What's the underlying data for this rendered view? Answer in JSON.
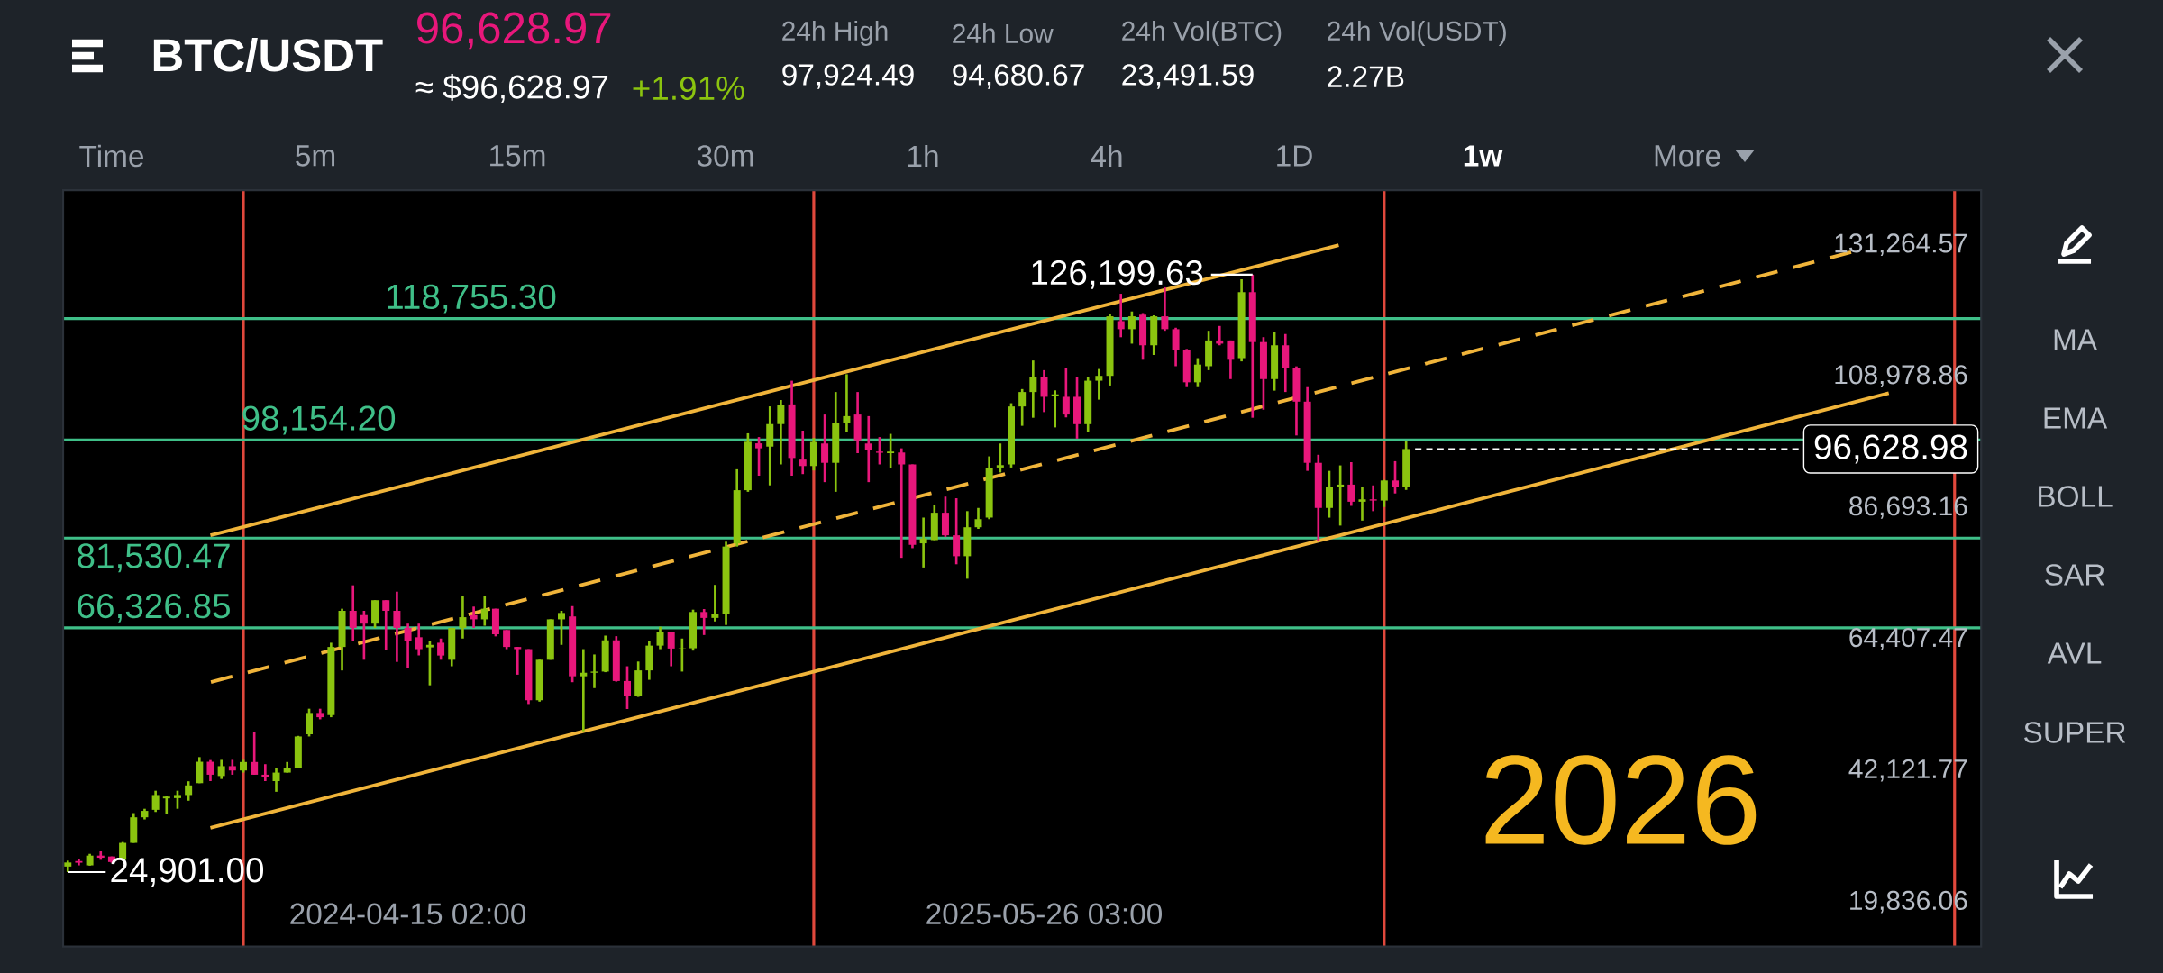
{
  "chart_data": {
    "type": "candlestick",
    "title": "BTC/USDT",
    "x": [
      "2023-09-11",
      "2023-09-18",
      "2023-09-25",
      "2023-10-02",
      "2023-10-09",
      "2023-10-16",
      "2023-10-23",
      "2023-10-30",
      "2023-11-06",
      "2023-11-13",
      "2023-11-20",
      "2023-11-27",
      "2023-12-04",
      "2023-12-11",
      "2023-12-18",
      "2023-12-25",
      "2024-01-01",
      "2024-01-08",
      "2024-01-15",
      "2024-01-22",
      "2024-01-29",
      "2024-02-05",
      "2024-02-12",
      "2024-02-19",
      "2024-02-26",
      "2024-03-04",
      "2024-03-11",
      "2024-03-18",
      "2024-03-25",
      "2024-04-01",
      "2024-04-08",
      "2024-04-15",
      "2024-04-22",
      "2024-04-29",
      "2024-05-06",
      "2024-05-13",
      "2024-05-20",
      "2024-05-27",
      "2024-06-03",
      "2024-06-10",
      "2024-06-17",
      "2024-06-24",
      "2024-07-01",
      "2024-07-08",
      "2024-07-15",
      "2024-07-22",
      "2024-07-29",
      "2024-08-05",
      "2024-08-12",
      "2024-08-19",
      "2024-08-26",
      "2024-09-02",
      "2024-09-09",
      "2024-09-16",
      "2024-09-23",
      "2024-09-30",
      "2024-10-07",
      "2024-10-14",
      "2024-10-21",
      "2024-10-28",
      "2024-11-04",
      "2024-11-11",
      "2024-11-18",
      "2024-11-25",
      "2024-12-02",
      "2024-12-09",
      "2024-12-16",
      "2024-12-23",
      "2024-12-30",
      "2025-01-06",
      "2025-01-13",
      "2025-01-20",
      "2025-01-27",
      "2025-02-03",
      "2025-02-10",
      "2025-02-17",
      "2025-02-24",
      "2025-03-03",
      "2025-03-10",
      "2025-03-17",
      "2025-03-24",
      "2025-03-31",
      "2025-04-07",
      "2025-04-14",
      "2025-04-21",
      "2025-04-28",
      "2025-05-05",
      "2025-05-12",
      "2025-05-19",
      "2025-05-26",
      "2025-06-02",
      "2025-06-09",
      "2025-06-16",
      "2025-06-23",
      "2025-06-30",
      "2025-07-07",
      "2025-07-14",
      "2025-07-21",
      "2025-07-28",
      "2025-08-04",
      "2025-08-11",
      "2025-08-18",
      "2025-08-25",
      "2025-09-01",
      "2025-09-08",
      "2025-09-15",
      "2025-09-22",
      "2025-09-29",
      "2025-10-06",
      "2025-10-13",
      "2025-10-20",
      "2025-10-27",
      "2025-11-03",
      "2025-11-10",
      "2025-11-17",
      "2025-11-24",
      "2025-12-01",
      "2025-12-08",
      "2025-12-15",
      "2025-12-22",
      "2025-12-29",
      "2026-01-05",
      "2026-01-12"
    ],
    "ohlc": [
      [
        25840,
        26840,
        24901,
        26530
      ],
      [
        26770,
        27120,
        26040,
        26490
      ],
      [
        26040,
        28000,
        26000,
        27700
      ],
      [
        27700,
        28420,
        26980,
        27340
      ],
      [
        27550,
        27550,
        26470,
        26610
      ],
      [
        26970,
        30000,
        26900,
        29860
      ],
      [
        29860,
        34900,
        29860,
        34190
      ],
      [
        34190,
        35640,
        33830,
        35280
      ],
      [
        35460,
        38700,
        35100,
        37970
      ],
      [
        37400,
        37800,
        34700,
        37700
      ],
      [
        37450,
        38700,
        35640,
        37970
      ],
      [
        37970,
        40300,
        37000,
        39600
      ],
      [
        39980,
        44400,
        39980,
        43610
      ],
      [
        43610,
        43900,
        40330,
        41410
      ],
      [
        41190,
        43930,
        40690,
        42860
      ],
      [
        42860,
        43930,
        41410,
        42130
      ],
      [
        42130,
        43930,
        41770,
        43570
      ],
      [
        43570,
        48630,
        41410,
        41410
      ],
      [
        41410,
        43200,
        40330,
        41050
      ],
      [
        40330,
        42490,
        38520,
        41770
      ],
      [
        41770,
        43570,
        41770,
        42490
      ],
      [
        42490,
        48000,
        42490,
        47900
      ],
      [
        48270,
        52600,
        47900,
        51880
      ],
      [
        51880,
        52600,
        50800,
        51160
      ],
      [
        51520,
        63790,
        51160,
        63070
      ],
      [
        63070,
        69560,
        59090,
        69200
      ],
      [
        69200,
        73530,
        64150,
        66310
      ],
      [
        68480,
        69200,
        60900,
        67030
      ],
      [
        67030,
        71000,
        66300,
        71000
      ],
      [
        71000,
        71000,
        62510,
        69200
      ],
      [
        69200,
        72450,
        60540,
        66310
      ],
      [
        66310,
        67030,
        59450,
        64150
      ],
      [
        64720,
        67030,
        61640,
        62700
      ],
      [
        63000,
        64150,
        56570,
        63430
      ],
      [
        63790,
        64500,
        60900,
        61620
      ],
      [
        60900,
        66310,
        59800,
        66310
      ],
      [
        66310,
        71720,
        64500,
        68120
      ],
      [
        68480,
        69920,
        66310,
        67760
      ],
      [
        67760,
        71720,
        66670,
        69560
      ],
      [
        69560,
        69560,
        64870,
        65230
      ],
      [
        65950,
        65950,
        62700,
        63070
      ],
      [
        63070,
        63070,
        58370,
        62700
      ],
      [
        62700,
        62700,
        53400,
        54040
      ],
      [
        54040,
        60900,
        53800,
        60900
      ],
      [
        60900,
        67760,
        60900,
        67760
      ],
      [
        67760,
        69200,
        63430,
        68840
      ],
      [
        68250,
        70000,
        57100,
        58100
      ],
      [
        58100,
        62700,
        48790,
        58700
      ],
      [
        58700,
        61800,
        56100,
        58900
      ],
      [
        58900,
        65000,
        58800,
        64200
      ],
      [
        64200,
        64900,
        57200,
        57300
      ],
      [
        57300,
        59800,
        52550,
        54800
      ],
      [
        54800,
        60600,
        54600,
        59100
      ],
      [
        59100,
        64100,
        57500,
        63300
      ],
      [
        63300,
        66500,
        62700,
        65600
      ],
      [
        65600,
        65600,
        59800,
        62800
      ],
      [
        62800,
        64500,
        58900,
        62850
      ],
      [
        62850,
        69400,
        62450,
        69000
      ],
      [
        69000,
        69500,
        65100,
        68000
      ],
      [
        68000,
        73600,
        67400,
        68700
      ],
      [
        68700,
        80917,
        66800,
        80098
      ],
      [
        80644,
        93200,
        80098,
        89654
      ],
      [
        89654,
        99300,
        89381,
        97870
      ],
      [
        97600,
        98663,
        92112,
        96750
      ],
      [
        97040,
        103864,
        90473,
        100862
      ],
      [
        100862,
        104942,
        94023,
        104140
      ],
      [
        104200,
        108217,
        92112,
        95113
      ],
      [
        94840,
        99750,
        92385,
        93750
      ],
      [
        93750,
        98500,
        93000,
        97840
      ],
      [
        97570,
        102484,
        91020,
        94295
      ],
      [
        94295,
        106300,
        89381,
        101119
      ],
      [
        101119,
        109310,
        99477,
        102211
      ],
      [
        102484,
        106300,
        95932,
        98117
      ],
      [
        97570,
        102211,
        91020,
        96478
      ],
      [
        96200,
        98663,
        94023,
        96000
      ],
      [
        95932,
        99204,
        93477,
        96200
      ],
      [
        96041,
        96750,
        78187,
        94023
      ],
      [
        94023,
        94023,
        79826,
        80372
      ],
      [
        80644,
        85012,
        76550,
        81463
      ],
      [
        81190,
        87197,
        81190,
        85832
      ],
      [
        85832,
        88561,
        81737,
        82010
      ],
      [
        82010,
        88288,
        77095,
        78460
      ],
      [
        78460,
        86105,
        74640,
        83375
      ],
      [
        83375,
        86650,
        83100,
        84740
      ],
      [
        85012,
        95387,
        84740,
        93477
      ],
      [
        93500,
        97570,
        92660,
        93900
      ],
      [
        94023,
        104400,
        93500,
        103850
      ],
      [
        103850,
        106800,
        100570,
        106300
      ],
      [
        106300,
        111644,
        101938,
        108763
      ],
      [
        108763,
        110000,
        102900,
        105487
      ],
      [
        105700,
        106580,
        100300,
        105900
      ],
      [
        105487,
        110400,
        102000,
        102484
      ],
      [
        105487,
        108763,
        98390,
        100850
      ],
      [
        100850,
        108763,
        99600,
        108217
      ],
      [
        108217,
        110200,
        105000,
        109036
      ],
      [
        109036,
        119600,
        107400,
        119137
      ],
      [
        118318,
        122959,
        115588,
        116953
      ],
      [
        116953,
        119956,
        114496,
        119137
      ],
      [
        119410,
        119683,
        111766,
        114222
      ],
      [
        114222,
        119300,
        112585,
        119137
      ],
      [
        119137,
        124051,
        116680,
        116953
      ],
      [
        116953,
        117200,
        110674,
        113400
      ],
      [
        113400,
        113600,
        107125,
        107944
      ],
      [
        107944,
        112040,
        107125,
        110946
      ],
      [
        110674,
        116680,
        110000,
        115042
      ],
      [
        115042,
        117500,
        114222,
        114496
      ],
      [
        115042,
        115042,
        108490,
        111766
      ],
      [
        112040,
        125416,
        111493,
        123232
      ],
      [
        123232,
        126199.63,
        101938,
        114769
      ],
      [
        114769,
        115600,
        103300,
        108490
      ],
      [
        108490,
        116400,
        106530,
        114222
      ],
      [
        114222,
        116135,
        106300,
        110400
      ],
      [
        110400,
        110650,
        98935,
        104668
      ],
      [
        104668,
        107125,
        92930,
        94294
      ],
      [
        94294,
        95660,
        81000,
        86650
      ],
      [
        86650,
        92930,
        85000,
        90200
      ],
      [
        90200,
        93858,
        83650,
        90600
      ],
      [
        90600,
        94400,
        87000,
        87700
      ],
      [
        87700,
        90200,
        84500,
        88100
      ],
      [
        88100,
        90470,
        86100,
        87900
      ],
      [
        87900,
        91400,
        86800,
        91300
      ],
      [
        91300,
        94570,
        89100,
        90200
      ],
      [
        90200,
        97924.49,
        89700,
        96628.97
      ]
    ],
    "colors": [
      "#8bc40f",
      "#e8177b",
      "#8bc40f",
      "#e8177b",
      "#e8177b",
      "#8bc40f",
      "#8bc40f",
      "#8bc40f",
      "#8bc40f",
      "#8bc40f",
      "#8bc40f",
      "#8bc40f",
      "#8bc40f",
      "#e8177b",
      "#8bc40f",
      "#e8177b",
      "#8bc40f",
      "#e8177b",
      "#e8177b",
      "#8bc40f",
      "#8bc40f",
      "#8bc40f",
      "#8bc40f",
      "#e8177b",
      "#8bc40f",
      "#8bc40f",
      "#e8177b",
      "#e8177b",
      "#8bc40f",
      "#e8177b",
      "#e8177b",
      "#e8177b",
      "#e8177b",
      "#8bc40f",
      "#e8177b",
      "#8bc40f",
      "#8bc40f",
      "#e8177b",
      "#8bc40f",
      "#e8177b",
      "#e8177b",
      "#e8177b",
      "#e8177b",
      "#8bc40f",
      "#8bc40f",
      "#8bc40f",
      "#e8177b",
      "#8bc40f",
      "#8bc40f",
      "#8bc40f",
      "#e8177b",
      "#e8177b",
      "#8bc40f",
      "#8bc40f",
      "#8bc40f",
      "#e8177b",
      "#8bc40f",
      "#8bc40f",
      "#e8177b",
      "#8bc40f",
      "#8bc40f",
      "#8bc40f",
      "#8bc40f",
      "#e8177b",
      "#8bc40f",
      "#8bc40f",
      "#e8177b",
      "#e8177b",
      "#8bc40f",
      "#e8177b",
      "#8bc40f",
      "#8bc40f",
      "#e8177b",
      "#e8177b",
      "#e8177b",
      "#8bc40f",
      "#e8177b",
      "#e8177b",
      "#8bc40f",
      "#8bc40f",
      "#e8177b",
      "#e8177b",
      "#8bc40f",
      "#8bc40f",
      "#8bc40f",
      "#8bc40f",
      "#8bc40f",
      "#8bc40f",
      "#8bc40f",
      "#e8177b",
      "#8bc40f",
      "#e8177b",
      "#e8177b",
      "#8bc40f",
      "#8bc40f",
      "#8bc40f",
      "#e8177b",
      "#8bc40f",
      "#e8177b",
      "#8bc40f",
      "#e8177b",
      "#e8177b",
      "#e8177b",
      "#8bc40f",
      "#8bc40f",
      "#e8177b",
      "#e8177b",
      "#8bc40f",
      "#e8177b",
      "#e8177b",
      "#8bc40f",
      "#e8177b",
      "#e8177b",
      "#e8177b",
      "#e8177b",
      "#8bc40f",
      "#8bc40f",
      "#e8177b",
      "#8bc40f",
      "#e8177b",
      "#8bc40f",
      "#e8177b",
      "#8bc40f"
    ],
    "xlim": [
      "2023-09-08",
      "2027-01-14"
    ],
    "xticks": [
      {
        "value": "2024-04-15",
        "label": "2024-04-15 02:00"
      },
      {
        "value": "2025-05-26",
        "label": "2025-05-26 03:00"
      }
    ],
    "ylim": [
      12285,
      140517
    ],
    "yticks": [
      {
        "value": 131264.57,
        "label": "131,264.57"
      },
      {
        "value": 108978.86,
        "label": "108,978.86"
      },
      {
        "value": 86693.16,
        "label": "86,693.16"
      },
      {
        "value": 64407.47,
        "label": "64,407.47"
      },
      {
        "value": 42121.77,
        "label": "42,121.77"
      },
      {
        "value": 19836.06,
        "label": "19,836.06"
      }
    ],
    "series": [
      {
        "type": "line",
        "color": "#f0b43a",
        "line_style": "solid",
        "x": [
          "2023-12-11",
          "2025-11-30"
        ],
        "values": [
          82000,
          131200
        ]
      },
      {
        "type": "line",
        "color": "#f0b43a",
        "line_style": "dashed",
        "x": [
          "2023-12-11",
          "2026-10-23"
        ],
        "values": [
          57100,
          130000
        ]
      },
      {
        "type": "line",
        "color": "#f0b43a",
        "line_style": "solid",
        "x": [
          "2023-12-11",
          "2026-11-16"
        ],
        "values": [
          32400,
          106100
        ]
      }
    ],
    "ref_lines": [
      {
        "axis": "x",
        "value": "2024-01-01",
        "color": "#e0483c"
      },
      {
        "axis": "x",
        "value": "2024-12-30",
        "color": "#e0483c"
      },
      {
        "axis": "x",
        "value": "2025-12-29",
        "color": "#e0483c"
      },
      {
        "axis": "x",
        "value": "2026-12-28",
        "color": "#e0483c"
      },
      {
        "axis": "y",
        "value": 118755.3,
        "label": "118,755.30",
        "color": "#3fbf88"
      },
      {
        "axis": "y",
        "value": 98154.2,
        "label": "98,154.20",
        "color": "#3fbf88"
      },
      {
        "axis": "y",
        "value": 81530.47,
        "label": "81,530.47",
        "color": "#3fbf88"
      },
      {
        "axis": "y",
        "value": 66326.85,
        "label": "66,326.85",
        "color": "#3fbf88"
      }
    ],
    "annotations": [
      "2026",
      "96,628.97",
      "≈ $96,628.97",
      "+1.91%",
      "24h High",
      "97,924.49",
      "24h Low",
      "94,680.67",
      "24h Vol(BTC)",
      "23,491.59",
      "24h Vol(USDT)",
      "2.27B",
      "Time",
      "5m",
      "15m",
      "30m",
      "1h",
      "4h",
      "1D",
      "1w",
      "More",
      "MA",
      "EMA",
      "BOLL",
      "SAR",
      "AVL",
      "SUPER",
      {
        "text": "126,199.63",
        "x": "2025-10-06",
        "y": 126199.63
      },
      {
        "text": "24,901.00",
        "x": "2023-09-11",
        "y": 24901
      },
      "96,628.98"
    ]
  }
}
